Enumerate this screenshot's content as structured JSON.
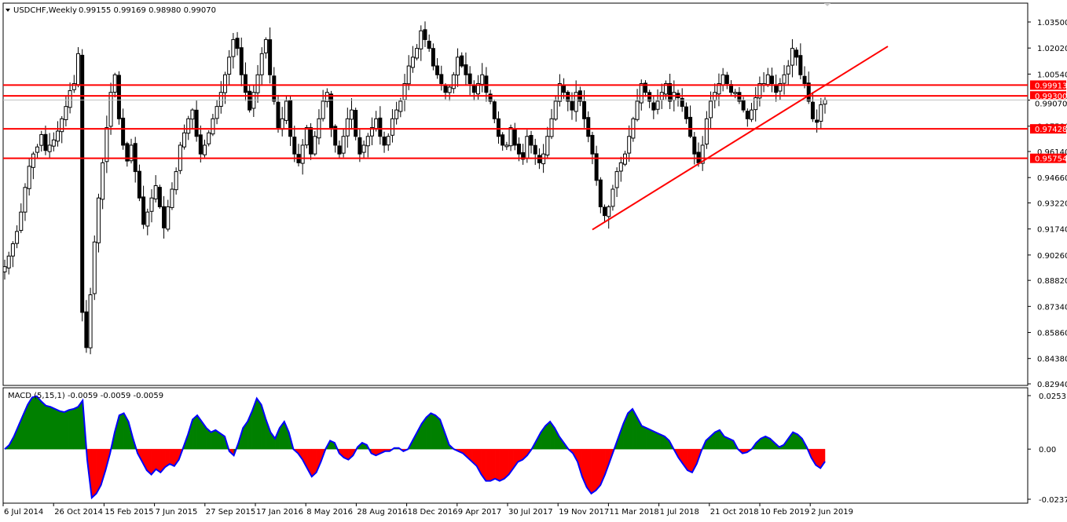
{
  "header": {
    "symbol": "USDCHF,Weekly",
    "ohlc": "0.99155 0.99169 0.98980 0.99070"
  },
  "macd_header": {
    "label": "MACD (5,15,1) -0.0059 -0.0059 -0.0059"
  },
  "colors": {
    "up_candle": "#ffffff",
    "down_candle": "#000000",
    "level_line": "#ff0000",
    "macd_positive": "#008000",
    "macd_negative": "#ff0000",
    "macd_signal": "#0000ff",
    "current_price_line": "#c0c0c0"
  },
  "chart_data": [
    {
      "type": "candlestick",
      "title": "USDCHF,Weekly",
      "ylim": [
        0.8294,
        1.035
      ],
      "yticks": [
        "1.03500",
        "1.02020",
        "1.00540",
        "0.99060",
        "0.97580",
        "0.96140",
        "0.94660",
        "0.93220",
        "0.91740",
        "0.90260",
        "0.88820",
        "0.87340",
        "0.85860",
        "0.84380",
        "0.82940"
      ],
      "xticks": [
        "6 Jul 2014",
        "26 Oct 2014",
        "15 Feb 2015",
        "7 Jun 2015",
        "27 Sep 2015",
        "17 Jan 2016",
        "8 May 2016",
        "28 Aug 2016",
        "18 Dec 2016",
        "9 Apr 2017",
        "30 Jul 2017",
        "19 Nov 2017",
        "11 Mar 2018",
        "1 Jul 2018",
        "21 Oct 2018",
        "10 Feb 2019",
        "2 Jun 2019"
      ],
      "current_price": "0.99070",
      "horizontal_levels": [
        "0.99913",
        "0.99300",
        "0.97428",
        "0.95754"
      ],
      "close_path": [
        0.896,
        0.902,
        0.909,
        0.916,
        0.927,
        0.941,
        0.953,
        0.96,
        0.964,
        0.971,
        0.962,
        0.965,
        0.968,
        0.973,
        0.98,
        0.987,
        0.996,
        1.0,
        1.017,
        0.87,
        0.85,
        0.88,
        0.91,
        0.935,
        0.955,
        0.975,
        0.995,
        1.005,
        0.98,
        0.965,
        0.956,
        0.965,
        0.95,
        0.935,
        0.92,
        0.927,
        0.935,
        0.942,
        0.93,
        0.918,
        0.93,
        0.94,
        0.95,
        0.965,
        0.972,
        0.98,
        0.985,
        0.97,
        0.96,
        0.965,
        0.972,
        0.98,
        0.987,
        0.995,
        1.005,
        1.015,
        1.025,
        1.02,
        1.005,
        0.995,
        0.985,
        0.995,
        1.005,
        1.017,
        1.025,
        1.005,
        0.99,
        0.975,
        0.98,
        0.99,
        0.97,
        0.96,
        0.955,
        0.965,
        0.975,
        0.96,
        0.97,
        0.98,
        0.99,
        0.995,
        0.975,
        0.965,
        0.96,
        0.97,
        0.98,
        0.985,
        0.97,
        0.96,
        0.965,
        0.97,
        0.975,
        0.98,
        0.97,
        0.965,
        0.97,
        0.98,
        0.985,
        0.99,
        1.0,
        1.01,
        1.015,
        1.02,
        1.03,
        1.025,
        1.02,
        1.01,
        1.005,
        1.0,
        0.995,
        0.998,
        1.005,
        1.015,
        1.01,
        1.005,
        1.0,
        0.995,
        1.0,
        1.005,
        0.995,
        0.99,
        0.98,
        0.97,
        0.965,
        0.965,
        0.975,
        0.965,
        0.96,
        0.957,
        0.97,
        0.965,
        0.96,
        0.955,
        0.96,
        0.97,
        0.98,
        0.99,
        1.0,
        0.995,
        0.99,
        0.985,
        0.995,
        0.99,
        0.98,
        0.97,
        0.96,
        0.945,
        0.93,
        0.925,
        0.93,
        0.94,
        0.95,
        0.955,
        0.96,
        0.97,
        0.98,
        0.99,
        1.0,
        0.995,
        0.99,
        0.985,
        0.99,
        0.995,
        1.0,
        0.99,
        0.995,
        0.992,
        0.987,
        0.98,
        0.97,
        0.96,
        0.955,
        0.965,
        0.98,
        0.99,
        0.995,
        1.0,
        1.005,
        1.0,
        0.995,
        0.995,
        0.99,
        0.985,
        0.98,
        0.985,
        0.992,
        1.0,
        1.0,
        1.005,
        1.0,
        0.995,
        1.0,
        1.005,
        1.01,
        1.02,
        1.015,
        1.005,
        1.0,
        0.99,
        0.98,
        0.978,
        0.988,
        0.9907
      ]
    },
    {
      "type": "macd",
      "title": "MACD (5,15,1) -0.0059 -0.0059 -0.0059",
      "ylim": [
        -0.0237,
        0.0253
      ],
      "yticks": [
        "0.0253",
        "0.00",
        "-0.0237"
      ],
      "last_value": -0.0059,
      "values": [
        0.0,
        0.002,
        0.006,
        0.011,
        0.016,
        0.021,
        0.0245,
        0.025,
        0.0225,
        0.0205,
        0.02,
        0.019,
        0.018,
        0.0175,
        0.0185,
        0.019,
        0.02,
        0.023,
        -0.005,
        -0.023,
        -0.021,
        -0.017,
        -0.01,
        -0.002,
        0.008,
        0.016,
        0.017,
        0.013,
        0.005,
        -0.002,
        -0.006,
        -0.01,
        -0.012,
        -0.0095,
        -0.011,
        -0.0085,
        -0.007,
        -0.008,
        -0.005,
        0.001,
        0.007,
        0.014,
        0.016,
        0.013,
        0.01,
        0.008,
        0.009,
        0.0075,
        0.006,
        -0.001,
        -0.003,
        0.003,
        0.01,
        0.013,
        0.018,
        0.024,
        0.021,
        0.014,
        0.008,
        0.005,
        0.01,
        0.013,
        0.008,
        0.0,
        -0.002,
        -0.005,
        -0.009,
        -0.013,
        -0.011,
        -0.006,
        0.0,
        0.004,
        0.003,
        -0.002,
        -0.004,
        -0.005,
        -0.003,
        0.001,
        0.003,
        0.002,
        -0.002,
        -0.003,
        -0.002,
        -0.001,
        -0.001,
        0.0005,
        0.0005,
        -0.001,
        0.0,
        0.004,
        0.008,
        0.012,
        0.015,
        0.017,
        0.016,
        0.014,
        0.008,
        0.002,
        0.0,
        -0.001,
        -0.002,
        -0.004,
        -0.006,
        -0.008,
        -0.012,
        -0.015,
        -0.015,
        -0.014,
        -0.015,
        -0.014,
        -0.012,
        -0.009,
        -0.006,
        -0.005,
        -0.003,
        0.0,
        0.004,
        0.008,
        0.011,
        0.013,
        0.01,
        0.006,
        0.003,
        0.0,
        -0.002,
        -0.006,
        -0.013,
        -0.018,
        -0.021,
        -0.0195,
        -0.017,
        -0.012,
        -0.006,
        0.0,
        0.006,
        0.012,
        0.017,
        0.019,
        0.015,
        0.011,
        0.01,
        0.009,
        0.008,
        0.007,
        0.006,
        0.004,
        0.0,
        -0.004,
        -0.007,
        -0.01,
        -0.011,
        -0.007,
        -0.001,
        0.004,
        0.006,
        0.008,
        0.009,
        0.006,
        0.005,
        0.004,
        0.0,
        -0.002,
        -0.0015,
        0.0,
        0.003,
        0.005,
        0.006,
        0.005,
        0.003,
        0.001,
        0.002,
        0.005,
        0.008,
        0.007,
        0.005,
        0.001,
        -0.004,
        -0.0075,
        -0.009,
        -0.0059
      ]
    }
  ]
}
